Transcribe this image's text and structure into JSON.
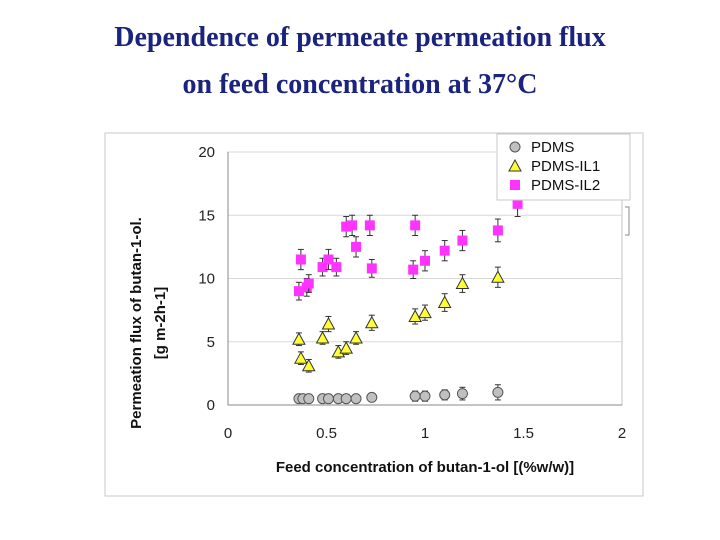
{
  "title": {
    "line1": "Dependence of permeate permeation flux",
    "line2": "on feed concentration at 37°C"
  },
  "chart_data": {
    "type": "scatter",
    "xlabel": "Feed concentration of butan-1-ol [(%w/w)]",
    "ylabel_line1": "Permeation flux of butan-1-ol.",
    "ylabel_line2": "[g m-2h-1]",
    "xlim": [
      0,
      2
    ],
    "ylim": [
      0,
      20
    ],
    "xticks": [
      "0",
      "0.5",
      "1",
      "1.5",
      "2"
    ],
    "yticks": [
      "0",
      "5",
      "10",
      "15",
      "20"
    ],
    "grid": "horizontal",
    "legend_position": "top-right",
    "series": [
      {
        "name": "PDMS",
        "marker": "circle",
        "color": "#c0c0c0",
        "points": [
          {
            "x": 0.36,
            "y": 0.5,
            "err": 0.3
          },
          {
            "x": 0.38,
            "y": 0.5,
            "err": 0.3
          },
          {
            "x": 0.41,
            "y": 0.5,
            "err": 0.3
          },
          {
            "x": 0.48,
            "y": 0.5,
            "err": 0.3
          },
          {
            "x": 0.51,
            "y": 0.5,
            "err": 0.3
          },
          {
            "x": 0.56,
            "y": 0.5,
            "err": 0.3
          },
          {
            "x": 0.6,
            "y": 0.5,
            "err": 0.3
          },
          {
            "x": 0.65,
            "y": 0.5,
            "err": 0.3
          },
          {
            "x": 0.73,
            "y": 0.6,
            "err": 0.3
          },
          {
            "x": 0.95,
            "y": 0.7,
            "err": 0.4
          },
          {
            "x": 1.0,
            "y": 0.7,
            "err": 0.4
          },
          {
            "x": 1.1,
            "y": 0.8,
            "err": 0.4
          },
          {
            "x": 1.19,
            "y": 0.9,
            "err": 0.5
          },
          {
            "x": 1.37,
            "y": 1.0,
            "err": 0.6
          }
        ]
      },
      {
        "name": "PDMS-IL1",
        "marker": "triangle",
        "color": "#ffff33",
        "points": [
          {
            "x": 0.36,
            "y": 5.2,
            "err": 0.5
          },
          {
            "x": 0.37,
            "y": 3.7,
            "err": 0.5
          },
          {
            "x": 0.41,
            "y": 3.1,
            "err": 0.5
          },
          {
            "x": 0.48,
            "y": 5.3,
            "err": 0.5
          },
          {
            "x": 0.51,
            "y": 6.4,
            "err": 0.6
          },
          {
            "x": 0.56,
            "y": 4.2,
            "err": 0.5
          },
          {
            "x": 0.6,
            "y": 4.5,
            "err": 0.5
          },
          {
            "x": 0.65,
            "y": 5.3,
            "err": 0.5
          },
          {
            "x": 0.73,
            "y": 6.5,
            "err": 0.6
          },
          {
            "x": 0.95,
            "y": 7.0,
            "err": 0.6
          },
          {
            "x": 1.0,
            "y": 7.3,
            "err": 0.6
          },
          {
            "x": 1.1,
            "y": 8.1,
            "err": 0.7
          },
          {
            "x": 1.19,
            "y": 9.6,
            "err": 0.7
          },
          {
            "x": 1.37,
            "y": 10.1,
            "err": 0.8
          }
        ]
      },
      {
        "name": "PDMS-IL2",
        "marker": "square",
        "color": "#ff33ff",
        "points": [
          {
            "x": 0.36,
            "y": 9.0,
            "err": 0.7
          },
          {
            "x": 0.37,
            "y": 11.5,
            "err": 0.8
          },
          {
            "x": 0.4,
            "y": 9.3,
            "err": 0.7
          },
          {
            "x": 0.41,
            "y": 9.6,
            "err": 0.7
          },
          {
            "x": 0.48,
            "y": 10.9,
            "err": 0.7
          },
          {
            "x": 0.51,
            "y": 11.5,
            "err": 0.8
          },
          {
            "x": 0.55,
            "y": 10.9,
            "err": 0.7
          },
          {
            "x": 0.6,
            "y": 14.1,
            "err": 0.8
          },
          {
            "x": 0.63,
            "y": 14.2,
            "err": 0.8
          },
          {
            "x": 0.65,
            "y": 12.5,
            "err": 0.8
          },
          {
            "x": 0.72,
            "y": 14.2,
            "err": 0.8
          },
          {
            "x": 0.73,
            "y": 10.8,
            "err": 0.7
          },
          {
            "x": 0.95,
            "y": 14.2,
            "err": 0.8
          },
          {
            "x": 0.94,
            "y": 10.7,
            "err": 0.7
          },
          {
            "x": 1.0,
            "y": 11.4,
            "err": 0.8
          },
          {
            "x": 1.1,
            "y": 12.2,
            "err": 0.8
          },
          {
            "x": 1.19,
            "y": 13.0,
            "err": 0.8
          },
          {
            "x": 1.37,
            "y": 13.8,
            "err": 0.9
          },
          {
            "x": 1.47,
            "y": 15.9,
            "err": 1.0
          }
        ]
      }
    ]
  }
}
